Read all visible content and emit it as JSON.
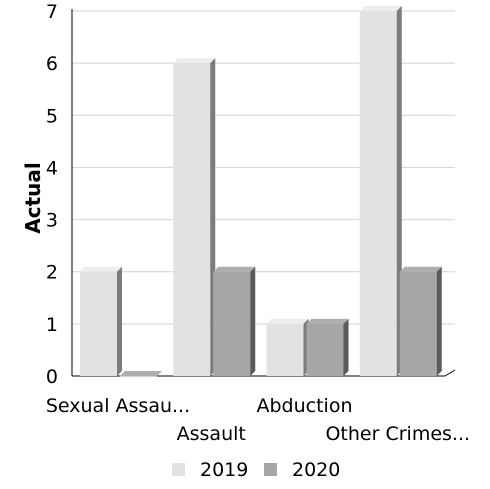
{
  "chart_data": {
    "type": "bar",
    "categories": [
      "Sexual Assau...",
      "Assault",
      "Abduction",
      "Other Crimes..."
    ],
    "series": [
      {
        "name": "2019",
        "values": [
          2,
          6,
          1,
          7
        ],
        "color": "#e2e2e2"
      },
      {
        "name": "2020",
        "values": [
          0,
          2,
          1,
          2
        ],
        "color": "#a6a6a6"
      }
    ],
    "title": "",
    "xlabel": "",
    "ylabel": "Actual",
    "ylim": [
      0,
      7
    ],
    "yticks": [
      0,
      1,
      2,
      3,
      4,
      5,
      6,
      7
    ],
    "grid": true,
    "legend": "bottom",
    "style": "3d-bar"
  }
}
